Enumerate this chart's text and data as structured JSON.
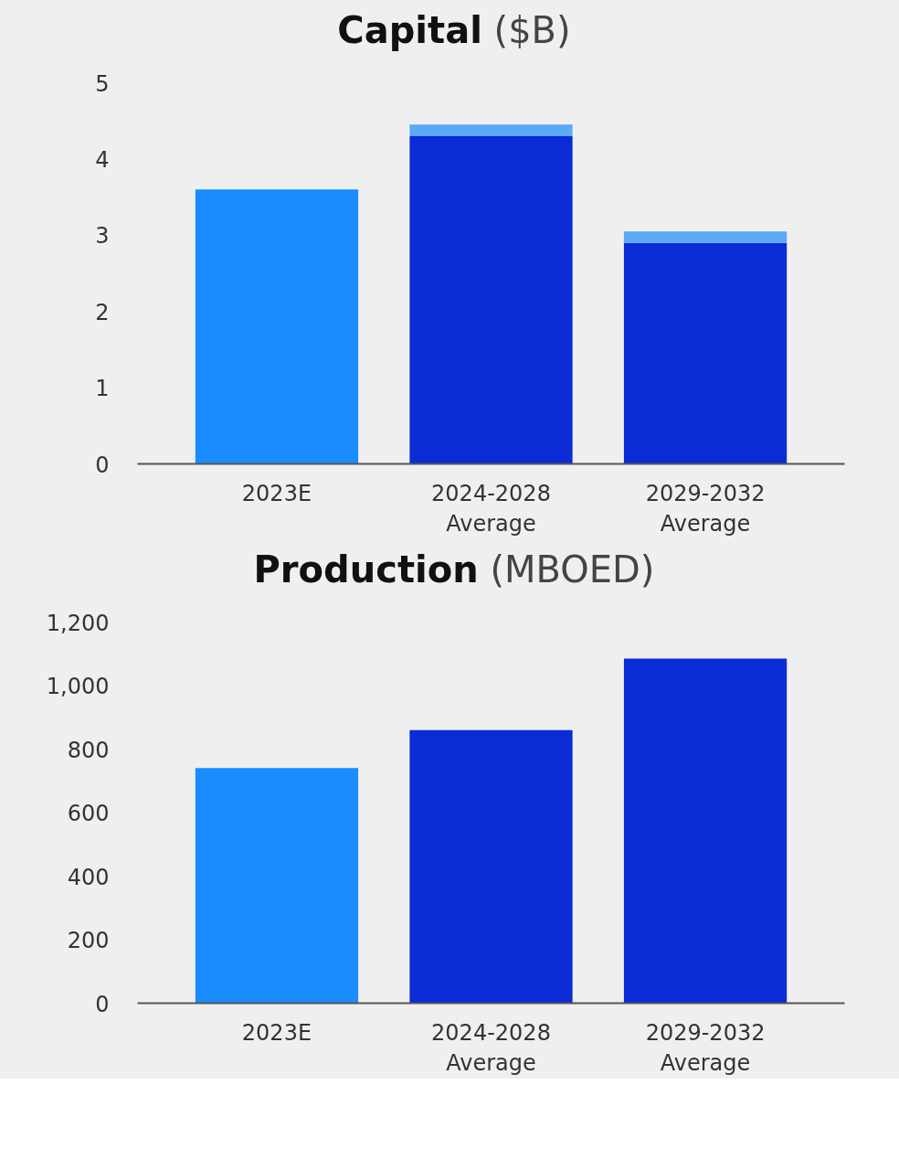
{
  "chart_data": [
    {
      "type": "bar",
      "title": "Capital ($B)",
      "categories": [
        "2023E",
        "2024-2028 Average",
        "2029-2032 Average"
      ],
      "stacked": true,
      "series": [
        {
          "colors": [
            "#1a8cff",
            "#0a2bd6",
            "#0a2bd6"
          ],
          "values": [
            3.6,
            4.3,
            2.9
          ]
        },
        {
          "color": "#5aaaf5",
          "values": [
            0,
            0.15,
            0.15
          ]
        }
      ],
      "ylim": [
        0,
        5
      ],
      "yticks": [
        0,
        1,
        2,
        3,
        4,
        5
      ],
      "grid": false
    },
    {
      "type": "bar",
      "title": "Production (MBOED)",
      "categories": [
        "2023E",
        "2024-2028 Average",
        "2029-2032 Average"
      ],
      "series": [
        {
          "colors": [
            "#1a8cff",
            "#0a2bd6",
            "#0a2bd6"
          ],
          "values": [
            740,
            860,
            1085
          ]
        }
      ],
      "ylim": [
        0,
        1200
      ],
      "yticks": [
        0,
        {
          "value": 200,
          "label": "200"
        },
        {
          "value": 400,
          "label": "400"
        },
        {
          "value": 600,
          "label": "600"
        },
        {
          "value": 800,
          "label": "800"
        },
        {
          "value": 1000,
          "label": "1,000"
        },
        {
          "value": 1200,
          "label": "1,200"
        }
      ],
      "grid": false
    }
  ]
}
